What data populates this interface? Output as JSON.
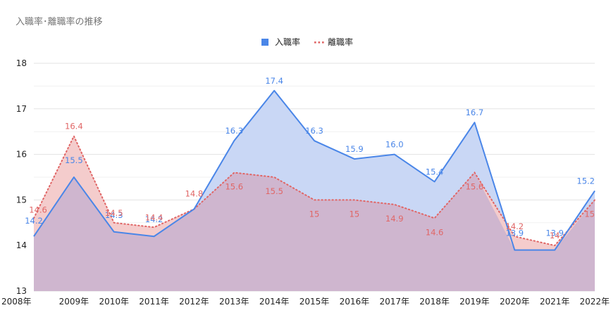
{
  "chart_data": {
    "type": "area",
    "title": "入職率･離職率の推移",
    "categories": [
      "2008年",
      "2009年",
      "2010年",
      "2011年",
      "2012年",
      "2013年",
      "2014年",
      "2015年",
      "2016年",
      "2017年",
      "2018年",
      "2019年",
      "2020年",
      "2021年",
      "2022年"
    ],
    "series": [
      {
        "name": "入職率",
        "values": [
          14.2,
          15.5,
          14.3,
          14.2,
          14.8,
          16.3,
          17.4,
          16.3,
          15.9,
          16.0,
          15.4,
          16.7,
          13.9,
          13.9,
          15.2
        ],
        "labels": [
          "14.2",
          "15.5",
          "14.3",
          "14.2",
          "",
          "16.3",
          "17.4",
          "16.3",
          "15.9",
          "16.0",
          "15.4",
          "16.7",
          "13.9",
          "13.9",
          "15.2"
        ],
        "color": "#4a86e8",
        "fill": "#c9d7f5",
        "line_style": "solid"
      },
      {
        "name": "離職率",
        "values": [
          14.6,
          16.4,
          14.5,
          14.4,
          14.8,
          15.6,
          15.5,
          15.0,
          15.0,
          14.9,
          14.6,
          15.6,
          14.2,
          14.0,
          15.0
        ],
        "labels": [
          "14.6",
          "16.4",
          "14.5",
          "14.4",
          "14.8",
          "15.6",
          "15.5",
          "15",
          "15",
          "14.9",
          "14.6",
          "15.6",
          "14.2",
          "14",
          "15"
        ],
        "color": "#e06666",
        "fill": "#f4cccc",
        "line_style": "dotted"
      }
    ],
    "yticks": [
      13,
      14,
      15,
      16,
      17,
      18
    ],
    "ylim": [
      13,
      18
    ],
    "grid": true,
    "legend_position": "top-center",
    "overlap_fill": "#cfb6cf"
  }
}
